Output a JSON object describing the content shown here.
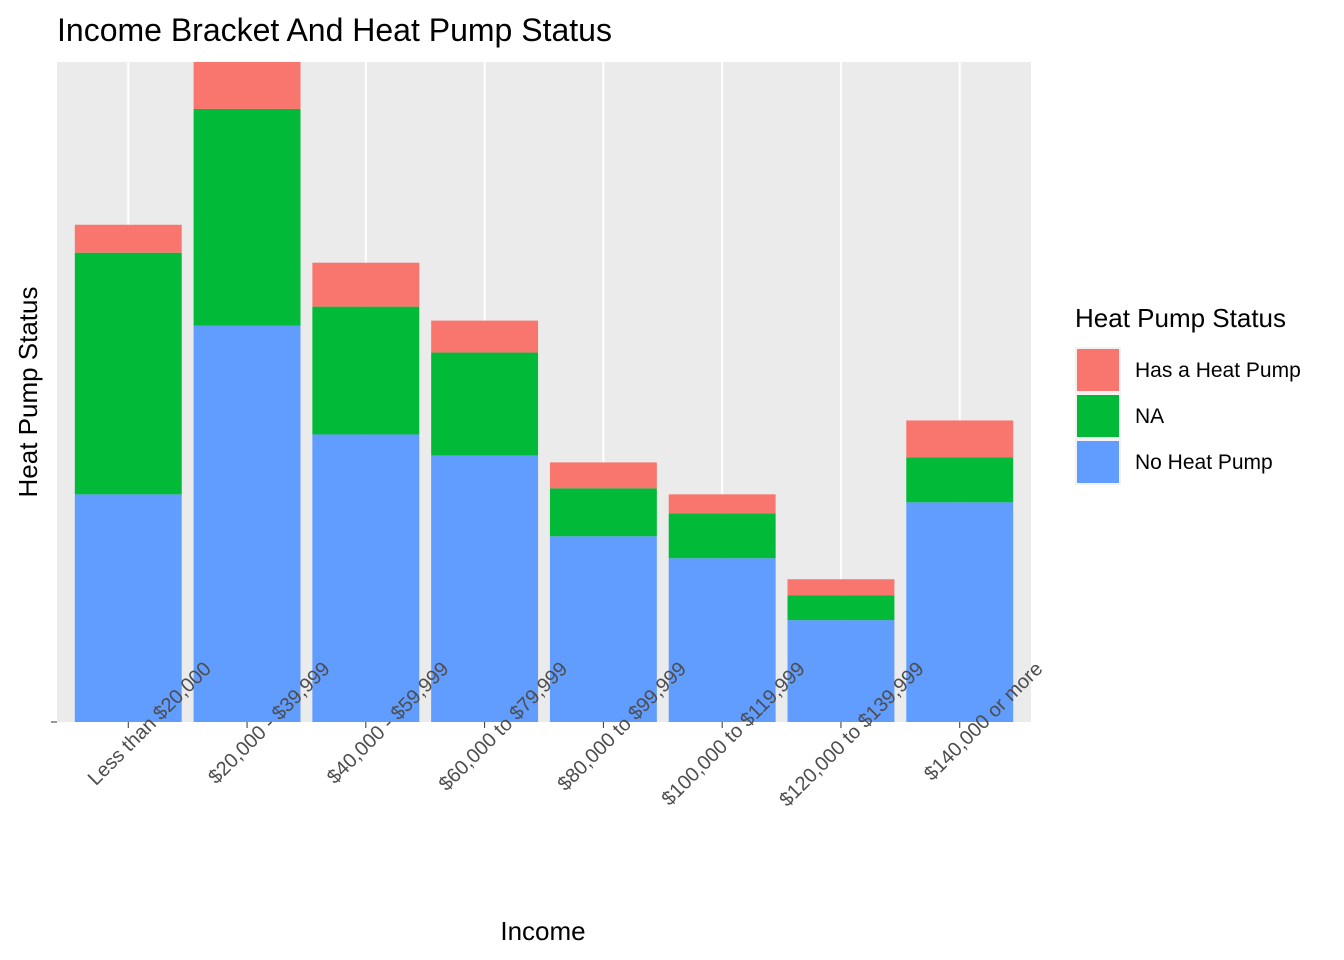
{
  "chart_data": {
    "type": "bar",
    "stacked": true,
    "title": "Income Bracket And Heat Pump Status",
    "xlabel": "Income",
    "ylabel": "Heat Pump Status",
    "categories": [
      "Less than $20,000",
      "$20,000 - $39,999",
      "$40,000 - $59,999",
      "$60,000 to $79,999",
      "$80,000 to $99,999",
      "$100,000 to $119,999",
      "$120,000 to $139,999",
      "$140,000 or more"
    ],
    "series": [
      {
        "name": "No Heat Pump",
        "color": "#619CFF",
        "values": [
          228,
          397,
          288,
          267,
          186,
          164,
          102,
          220
        ]
      },
      {
        "name": "NA",
        "color": "#00BA38",
        "values": [
          242,
          217,
          128,
          103,
          48,
          45,
          25,
          45
        ]
      },
      {
        "name": "Has a Heat Pump",
        "color": "#F8766D",
        "values": [
          28,
          47,
          44,
          32,
          26,
          19,
          16,
          37
        ]
      }
    ],
    "ylim": [
      0,
      661
    ],
    "y_tick_labels": [
      ""
    ],
    "grid": true,
    "panel_background": "#EBEBEB",
    "gridline_color": "#FFFFFF",
    "legend": {
      "title": "Heat Pump Status",
      "placement": "right",
      "entries": [
        {
          "label": "Has a Heat Pump",
          "color": "#F8766D"
        },
        {
          "label": "NA",
          "color": "#00BA38"
        },
        {
          "label": "No Heat Pump",
          "color": "#619CFF"
        }
      ]
    }
  }
}
